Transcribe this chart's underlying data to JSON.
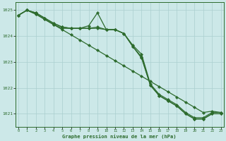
{
  "background_color": "#cce8e8",
  "grid_color": "#aacfcf",
  "line_color": "#2d6b2d",
  "xlabel": "Graphe pression niveau de la mer (hPa)",
  "x_ticks": [
    0,
    1,
    2,
    3,
    4,
    5,
    6,
    7,
    8,
    9,
    10,
    11,
    12,
    13,
    14,
    15,
    16,
    17,
    18,
    19,
    20,
    21,
    22,
    23
  ],
  "ylim": [
    1020.5,
    1025.3
  ],
  "y_ticks": [
    1021,
    1022,
    1023,
    1024,
    1025
  ],
  "series": [
    [
      1024.8,
      1025.0,
      1024.85,
      1024.65,
      1024.45,
      1024.25,
      1024.05,
      1023.85,
      1023.65,
      1023.45,
      1023.25,
      1023.05,
      1022.85,
      1022.65,
      1022.45,
      1022.25,
      1022.05,
      1021.85,
      1021.65,
      1021.45,
      1021.25,
      1021.05,
      1021.1,
      1021.05
    ],
    [
      1024.8,
      1025.0,
      1024.9,
      1024.7,
      1024.5,
      1024.35,
      1024.3,
      1024.3,
      1024.3,
      1024.35,
      1024.25,
      1024.25,
      1024.1,
      1023.65,
      1023.3,
      1022.15,
      1021.75,
      1021.55,
      1021.35,
      1021.05,
      1020.85,
      1020.85,
      1021.05,
      1021.05
    ],
    [
      1024.8,
      1025.0,
      1024.9,
      1024.7,
      1024.5,
      1024.35,
      1024.3,
      1024.3,
      1024.4,
      1024.9,
      1024.25,
      1024.25,
      1024.1,
      1023.6,
      1023.15,
      1022.1,
      1021.7,
      1021.5,
      1021.3,
      1021.0,
      1020.8,
      1020.8,
      1021.0,
      1021.0
    ],
    [
      1024.8,
      1025.0,
      1024.85,
      1024.65,
      1024.45,
      1024.3,
      1024.3,
      1024.3,
      1024.3,
      1024.3,
      1024.25,
      1024.25,
      1024.1,
      1023.6,
      1023.2,
      1022.1,
      1021.7,
      1021.5,
      1021.3,
      1021.0,
      1020.8,
      1020.8,
      1021.0,
      1021.0
    ]
  ]
}
